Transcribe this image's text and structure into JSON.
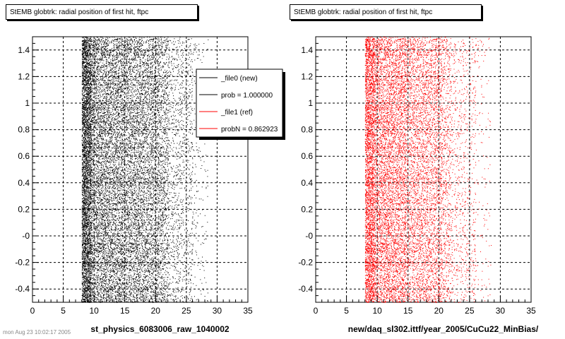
{
  "chart_data": [
    {
      "type": "scatter",
      "title": "StEMB globtrk: radial position of first hit, ftpc",
      "xlabel": "st_physics_6083006_raw_1040002",
      "ylabel": "",
      "xlim": [
        0,
        35
      ],
      "ylim": [
        -0.5,
        1.5
      ],
      "xticks": [
        "0",
        "5",
        "10",
        "15",
        "20",
        "25",
        "30",
        "35"
      ],
      "yticks": [
        "-0.4",
        "-0.2",
        "-0",
        "0.2",
        "0.4",
        "0.6",
        "0.8",
        "1",
        "1.2",
        "1.4"
      ],
      "grid": true,
      "series": [
        {
          "name": "_file0 (new)",
          "color": "#000000",
          "x_range": [
            8,
            26
          ],
          "density_bands": [
            [
              8,
              9.5,
              3.0
            ],
            [
              9.5,
              14.5,
              1.6
            ],
            [
              14.5,
              20.5,
              1.1
            ],
            [
              20.5,
              22,
              0.7
            ],
            [
              22,
              26,
              0.3
            ],
            [
              26,
              28.5,
              0.08
            ]
          ]
        }
      ],
      "legend": {
        "placement": "top-right",
        "entries": [
          {
            "label": "_file0 (new)",
            "color": "#000000"
          },
          {
            "label": "prob = 1.000000",
            "color": "#000000"
          },
          {
            "label": "_file1 (ref)",
            "color": "#ff0000"
          },
          {
            "label": "probN = 0.862923",
            "color": "#ff0000"
          }
        ]
      }
    },
    {
      "type": "scatter",
      "title": "StEMB globtrk: radial position of first hit, ftpc",
      "xlabel": "new/daq_sl302.ittf/year_2005/CuCu22_MinBias/",
      "ylabel": "",
      "xlim": [
        0,
        35
      ],
      "ylim": [
        -0.5,
        1.5
      ],
      "xticks": [
        "0",
        "5",
        "10",
        "15",
        "20",
        "25",
        "30",
        "35"
      ],
      "yticks": [
        "-0.4",
        "-0.2",
        "-0",
        "0.2",
        "0.4",
        "0.6",
        "0.8",
        "1",
        "1.2",
        "1.4"
      ],
      "grid": true,
      "series": [
        {
          "name": "_file1 (ref)",
          "color": "#ff0000",
          "x_range": [
            8,
            26
          ],
          "density_bands": [
            [
              8,
              9.5,
              2.2
            ],
            [
              9.5,
              14.5,
              1.1
            ],
            [
              14.5,
              20.5,
              0.75
            ],
            [
              20.5,
              22,
              0.45
            ],
            [
              22,
              26,
              0.2
            ],
            [
              26,
              28.5,
              0.05
            ]
          ]
        }
      ]
    }
  ],
  "footer": "mon Aug 23 10:02:17 2005"
}
